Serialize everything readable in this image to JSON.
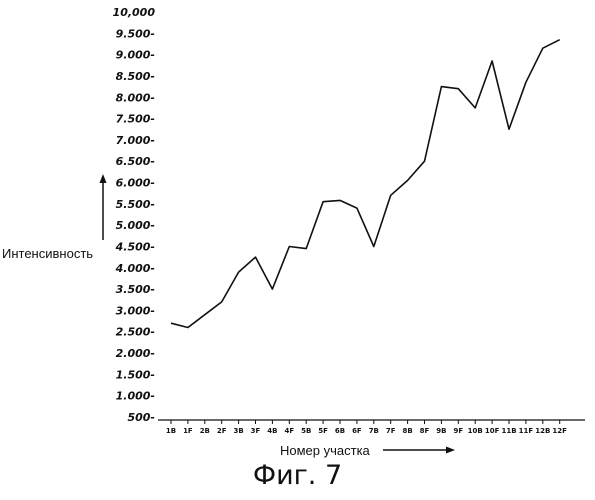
{
  "caption": "Фиг. 7",
  "chart_data": {
    "type": "line",
    "title": "",
    "xlabel": "Номер участка",
    "ylabel": "Интенсивность",
    "ylim": [
      0,
      10000
    ],
    "y_ticks": [
      "500-",
      "1.000-",
      "1.500-",
      "2.000-",
      "2.500-",
      "3.000-",
      "3.500-",
      "4.000-",
      "4.500-",
      "5.000-",
      "5.500-",
      "6.000-",
      "6.500-",
      "7.000-",
      "7.500-",
      "8.000-",
      "8.500-",
      "9.000-",
      "9.500-",
      "10,000"
    ],
    "y_tick_values": [
      500,
      1000,
      1500,
      2000,
      2500,
      3000,
      3500,
      4000,
      4500,
      5000,
      5500,
      6000,
      6500,
      7000,
      7500,
      8000,
      8500,
      9000,
      9500,
      10000
    ],
    "categories": [
      "1B",
      "1F",
      "2B",
      "2F",
      "3B",
      "3F",
      "4B",
      "4F",
      "5B",
      "5F",
      "6B",
      "6F",
      "7B",
      "7F",
      "8B",
      "8F",
      "9B",
      "9F",
      "10B",
      "10F",
      "11B",
      "11F",
      "12B",
      "12F"
    ],
    "series": [
      {
        "values": [
          2700,
          2600,
          2900,
          3200,
          3900,
          4250,
          3500,
          4500,
          4450,
          5550,
          5580,
          5400,
          4500,
          5700,
          6050,
          6500,
          8250,
          8200,
          7750,
          8850,
          7250,
          8350,
          9150,
          9350
        ]
      }
    ],
    "grid": false,
    "legend": "none"
  }
}
